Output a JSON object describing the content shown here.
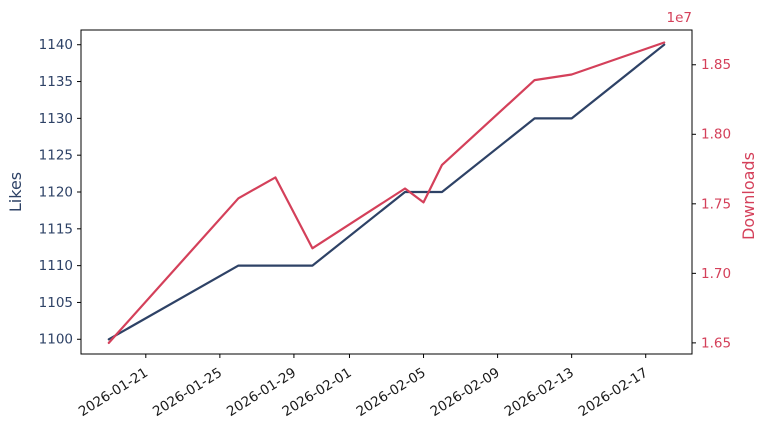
{
  "figure": {
    "background": "#ffffff",
    "spine_color": "#000000",
    "x_tick_label_color": "#1a1a1a"
  },
  "chart_data": {
    "type": "line",
    "title": "",
    "legend": "none",
    "grid": false,
    "x_axis": {
      "tick_labels": [
        "2026-01-21",
        "2026-01-25",
        "2026-01-29",
        "2026-02-01",
        "2026-02-05",
        "2026-02-09",
        "2026-02-13",
        "2026-02-17"
      ],
      "tick_day_offsets": [
        2,
        6,
        10,
        13,
        17,
        21,
        25,
        29
      ],
      "lim": [
        -1.5,
        31.5
      ],
      "rotation_deg": 32
    },
    "left_axis": {
      "label": "Likes",
      "color": "#2e4266",
      "tick_labels": [
        "1100",
        "1105",
        "1110",
        "1115",
        "1120",
        "1125",
        "1130",
        "1135",
        "1140"
      ],
      "tick_values": [
        1100,
        1105,
        1110,
        1115,
        1120,
        1125,
        1130,
        1135,
        1140
      ],
      "lim": [
        1098,
        1142
      ]
    },
    "right_axis": {
      "label": "Downloads",
      "color": "#d4405a",
      "offset_text": "1e7",
      "tick_labels": [
        "1.65",
        "1.70",
        "1.75",
        "1.80",
        "1.85"
      ],
      "tick_values": [
        1.65,
        1.7,
        1.75,
        1.8,
        1.85
      ],
      "lim": [
        1.642,
        1.875
      ]
    },
    "x_dates": [
      "2026-01-19",
      "2026-01-26",
      "2026-01-28",
      "2026-01-30",
      "2026-02-04",
      "2026-02-05",
      "2026-02-06",
      "2026-02-11",
      "2026-02-13",
      "2026-02-18"
    ],
    "x_days": [
      0,
      7,
      9,
      11,
      16,
      17,
      18,
      23,
      25,
      30
    ],
    "series": [
      {
        "name": "Likes",
        "axis": "left",
        "color": "#2e4266",
        "values": [
          1100,
          1110,
          1110,
          1110,
          1120,
          1120,
          1120,
          1130,
          1130,
          1140
        ]
      },
      {
        "name": "Downloads",
        "axis": "right",
        "unit": "1e7",
        "color": "#d4405a",
        "values": [
          1.65,
          1.754,
          1.769,
          1.718,
          1.761,
          1.751,
          1.778,
          1.839,
          1.843,
          1.866
        ]
      }
    ]
  }
}
